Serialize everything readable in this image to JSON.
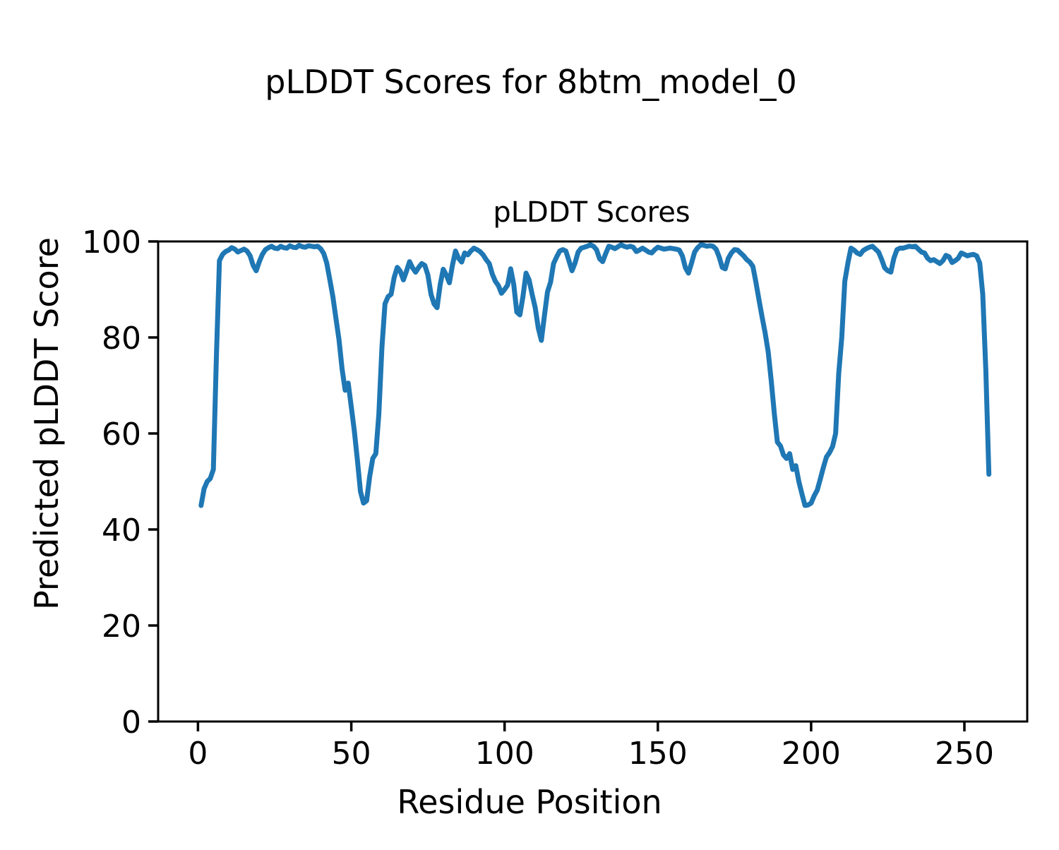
{
  "figure": {
    "suptitle": "pLDDT Scores for 8btm_model_0",
    "background": "#ffffff",
    "axes_color": "#000000"
  },
  "chart_data": {
    "type": "line",
    "title": "pLDDT Scores",
    "xlabel": "Residue Position",
    "ylabel": "Predicted pLDDT Score",
    "xlim": [
      -13,
      270.5
    ],
    "ylim": [
      0,
      100
    ],
    "x_ticks": [
      0,
      50,
      100,
      150,
      200,
      250
    ],
    "y_ticks": [
      0,
      20,
      40,
      60,
      80,
      100
    ],
    "grid": false,
    "legend": "none",
    "line_color": "#1f77b4",
    "series": [
      {
        "name": "pLDDT",
        "x_start": 1,
        "x_step": 1,
        "values": [
          45.0,
          48.5,
          50.0,
          50.6,
          52.5,
          76.0,
          96.0,
          97.3,
          97.9,
          98.2,
          98.7,
          98.4,
          97.8,
          98.1,
          98.4,
          98.0,
          97.0,
          95.0,
          93.9,
          95.8,
          97.3,
          98.3,
          98.7,
          99.0,
          98.6,
          98.5,
          99.0,
          98.7,
          98.6,
          99.1,
          98.8,
          98.7,
          99.2,
          98.9,
          98.8,
          99.1,
          99.0,
          98.9,
          99.0,
          98.5,
          97.5,
          95.5,
          92.0,
          88.5,
          84.0,
          79.5,
          73.5,
          69.0,
          70.5,
          65.5,
          60.5,
          54.5,
          47.9,
          45.5,
          46.0,
          51.0,
          54.8,
          55.8,
          64.0,
          78.0,
          87.0,
          88.5,
          89.0,
          92.5,
          94.6,
          93.8,
          92.0,
          93.8,
          95.8,
          94.5,
          93.6,
          94.6,
          95.4,
          95.0,
          93.0,
          89.0,
          87.0,
          86.2,
          91.0,
          94.2,
          93.0,
          91.4,
          95.0,
          98.0,
          96.5,
          95.7,
          97.6,
          97.2,
          98.0,
          98.6,
          98.3,
          97.9,
          97.2,
          96.2,
          95.4,
          93.2,
          91.7,
          90.8,
          89.2,
          90.0,
          90.9,
          94.3,
          91.0,
          85.3,
          84.7,
          88.5,
          93.4,
          92.0,
          89.0,
          86.2,
          82.0,
          79.4,
          84.5,
          89.5,
          91.5,
          95.4,
          96.8,
          98.0,
          98.3,
          98.0,
          96.0,
          93.9,
          95.5,
          97.8,
          98.6,
          98.8,
          99.0,
          99.3,
          99.0,
          98.3,
          96.4,
          95.8,
          97.5,
          99.0,
          98.8,
          98.5,
          98.9,
          99.3,
          99.0,
          98.8,
          99.0,
          98.8,
          97.9,
          98.2,
          98.6,
          98.2,
          97.8,
          97.6,
          98.3,
          98.8,
          98.6,
          98.4,
          98.5,
          98.6,
          98.5,
          98.4,
          98.2,
          97.0,
          94.5,
          93.4,
          95.5,
          97.8,
          98.7,
          99.3,
          99.2,
          99.0,
          99.1,
          99.0,
          98.4,
          96.8,
          94.6,
          94.3,
          96.5,
          97.6,
          98.3,
          98.2,
          97.6,
          97.0,
          96.2,
          95.7,
          94.8,
          91.5,
          87.8,
          84.3,
          81.0,
          77.0,
          71.0,
          64.1,
          58.2,
          57.4,
          55.5,
          54.8,
          55.8,
          52.5,
          53.3,
          50.0,
          47.4,
          45.0,
          45.1,
          45.5,
          47.0,
          48.2,
          50.5,
          52.9,
          55.1,
          56.0,
          57.3,
          60.0,
          72.5,
          80.0,
          91.7,
          95.5,
          98.6,
          98.2,
          97.6,
          97.3,
          98.1,
          98.5,
          98.8,
          99.0,
          98.4,
          97.8,
          96.3,
          94.5,
          93.9,
          93.6,
          96.5,
          98.3,
          98.6,
          98.6,
          98.8,
          99.0,
          98.9,
          99.0,
          98.4,
          97.8,
          97.6,
          96.5,
          96.0,
          96.2,
          95.8,
          95.4,
          96.0,
          97.1,
          96.8,
          95.6,
          96.0,
          96.5,
          97.6,
          97.3,
          97.0,
          97.2,
          97.3,
          97.0,
          95.5,
          89.0,
          73.0,
          51.5
        ]
      }
    ]
  }
}
